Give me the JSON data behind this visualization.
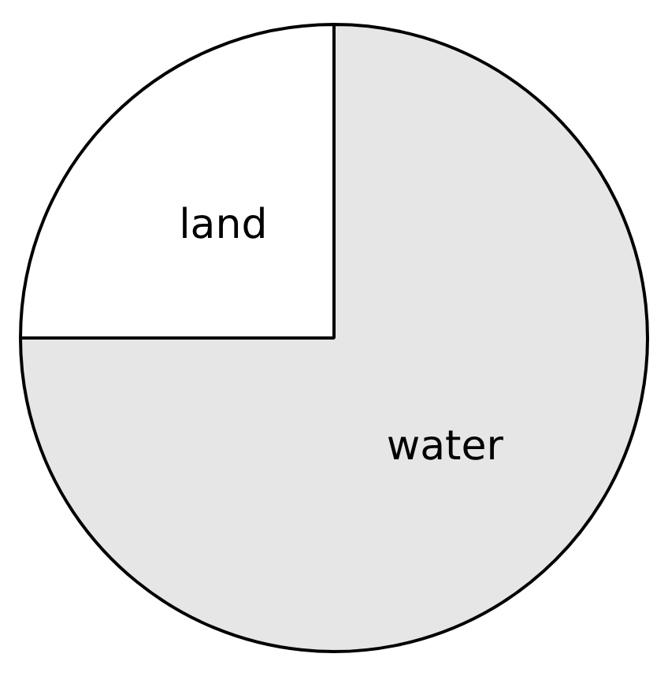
{
  "chart_data": {
    "type": "pie",
    "categories": [
      "land",
      "water"
    ],
    "values": [
      25,
      75
    ],
    "colors": [
      "#ffffff",
      "#e6e6e6"
    ],
    "legend": false
  }
}
